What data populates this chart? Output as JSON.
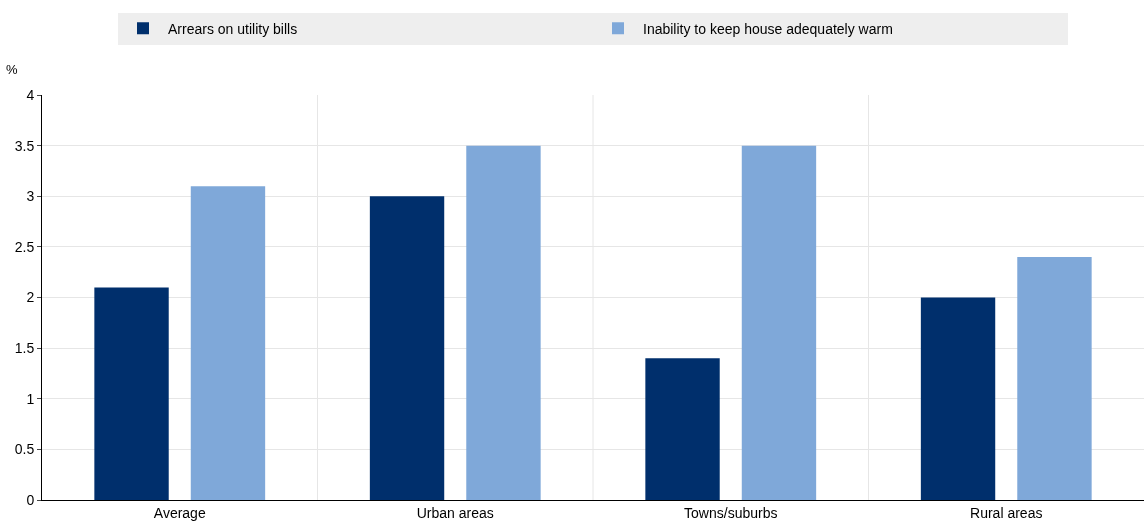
{
  "chart_data": {
    "type": "bar",
    "ylabel": "%",
    "categories": [
      "Average",
      "Urban areas",
      "Towns/suburbs",
      "Rural areas"
    ],
    "series": [
      {
        "name": "Arrears on utility bills",
        "color": "#002f6c",
        "values": [
          2.1,
          3.0,
          1.4,
          2.0
        ]
      },
      {
        "name": "Inability to keep house adequately warm",
        "color": "#7fa8d9",
        "values": [
          3.1,
          3.5,
          3.5,
          2.4
        ]
      }
    ],
    "ylim": [
      0,
      4
    ],
    "yticks": [
      0,
      0.5,
      1,
      1.5,
      2,
      2.5,
      3,
      3.5,
      4
    ],
    "grid": true,
    "legend": "top"
  }
}
